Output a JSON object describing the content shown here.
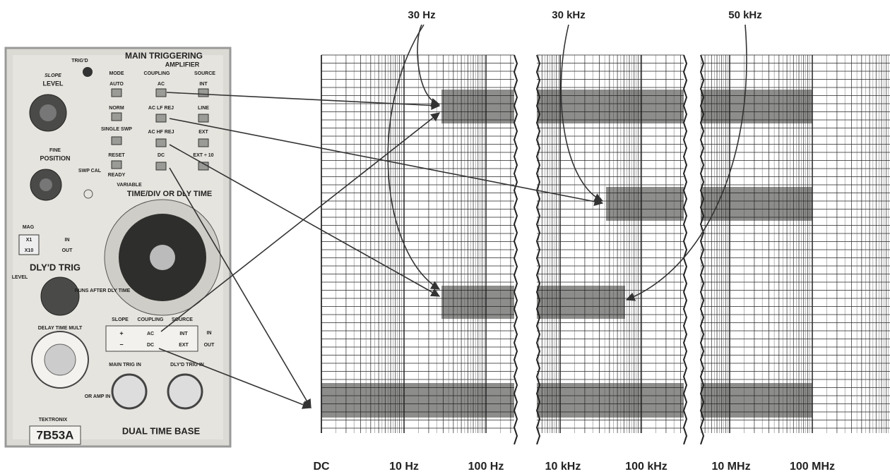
{
  "frequency_labels": [
    "30 Hz",
    "30 kHz",
    "50 kHz"
  ],
  "axis_labels": [
    "DC",
    "10 Hz",
    "100 Hz",
    "10 kHz",
    "100 kHz",
    "10 MHz",
    "100 MHz"
  ],
  "panel": {
    "title": "MAIN TRIGGERING",
    "subtitle": "AMPLIFIER",
    "trigd": "TRIG'D",
    "slope": "SLOPE",
    "level": "LEVEL",
    "mode": "MODE",
    "coupling": "COUPLING",
    "source": "SOURCE",
    "mode_buttons": [
      "AUTO",
      "NORM",
      "SINGLE SWP",
      "RESET"
    ],
    "ready": "READY",
    "coupling_buttons": [
      "AC",
      "AC LF REJ",
      "AC HF REJ",
      "DC"
    ],
    "source_buttons": [
      "INT",
      "LINE",
      "EXT",
      "EXT ÷ 10"
    ],
    "fine": "FINE",
    "position": "POSITION",
    "swp_cal": "SWP CAL",
    "variable": "VARIABLE",
    "time_div": "TIME/DIV OR DLY TIME",
    "mag": "MAG",
    "mag_options": [
      "X1",
      "X10"
    ],
    "mag_in": "IN",
    "mag_out": "OUT",
    "dly_trig": "DLY'D TRIG",
    "dly_level": "LEVEL",
    "runs_after": "RUNS AFTER DLY TIME",
    "delay_time_mult": "DELAY TIME MULT",
    "dly_slope": "SLOPE",
    "dly_coupling": "COUPLING",
    "dly_source": "SOURCE",
    "slope_options": [
      "+",
      "−"
    ],
    "dly_coupling_options": [
      "AC",
      "DC"
    ],
    "dly_source_options": [
      "INT",
      "EXT"
    ],
    "dly_in": "IN",
    "dly_out": "OUT",
    "main_trig_in": "MAIN TRIG IN",
    "or_amp_in": "OR AMP IN",
    "dlyd_trig_in": "DLY'D TRIG IN",
    "brand": "TEKTRONIX",
    "model": "7B53A",
    "name": "DUAL TIME BASE"
  }
}
